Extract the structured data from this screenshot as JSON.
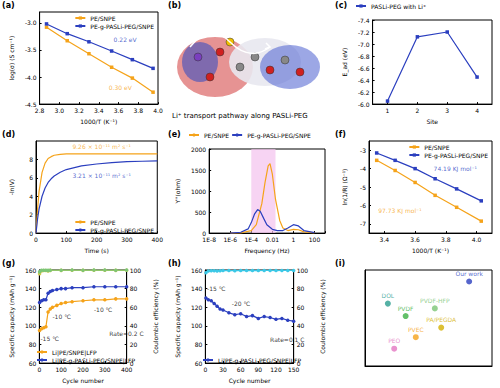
{
  "chart_data": [
    {
      "type": "line",
      "title": "(a)",
      "x_label": "1000/T (K⁻¹)",
      "y_label": "log(σ) (S cm⁻¹)",
      "xlim": [
        2.8,
        4.0
      ],
      "xticks": [
        2.8,
        {
          "value": 3.0,
          "label": "3.0"
        },
        3.2,
        3.4,
        3.6,
        3.8,
        {
          "value": 4.0,
          "label": "4.0"
        }
      ],
      "ylim": [
        -4.5,
        -2.8
      ],
      "yticks": [
        {
          "value": -3.0,
          "label": "-3.0"
        },
        -3.5,
        {
          "value": -4.0,
          "label": "-4.0"
        },
        -4.5
      ],
      "legend": "top-right",
      "marker": "square",
      "line_style": "solid",
      "series": [
        {
          "name": "PE/SNPE",
          "color": "#f5a31a",
          "x": [
            2.87,
            3.08,
            3.3,
            3.53,
            3.74,
            3.95
          ],
          "values": [
            -3.08,
            -3.33,
            -3.57,
            -3.82,
            -4.02,
            -4.28
          ]
        },
        {
          "name": "PE-g-PASLi-PEG/SNPE",
          "color": "#2b3fbf",
          "x": [
            2.87,
            3.08,
            3.3,
            3.53,
            3.74,
            3.95
          ],
          "values": [
            -3.02,
            -3.2,
            -3.35,
            -3.52,
            -3.68,
            -3.84
          ]
        }
      ],
      "annotations": [
        {
          "text": "0.22 eV",
          "color": "#2b3fbf",
          "x": 3.55,
          "y": -3.3
        },
        {
          "text": "0.30 eV",
          "color": "#f5a31a",
          "x": 3.5,
          "y": -4.2
        }
      ]
    },
    {
      "type": "diagram",
      "title": "(b)",
      "label": "Li⁺ transport pathway along PASLi-PEG"
    },
    {
      "type": "line",
      "title": "(c)",
      "x_label": "Site",
      "y_label": "E_ad (eV)",
      "categories": [
        "1",
        "2",
        "3",
        "4"
      ],
      "ylim": [
        -6.0,
        -7.4
      ],
      "yticks": [
        {
          "value": -6.0,
          "label": "-6.0"
        },
        -6.2,
        -6.4,
        -6.6,
        -6.8,
        {
          "value": -7.0,
          "label": "-7.0"
        },
        -7.2,
        -7.4
      ],
      "legend": "top",
      "marker": "square",
      "line_style": "solid",
      "series": [
        {
          "name": "PASLi-PEG with Li⁺",
          "color": "#2b3fbf",
          "values": [
            -6.05,
            -7.12,
            -7.2,
            -6.45
          ]
        }
      ]
    },
    {
      "type": "line",
      "title": "(d)",
      "x_label": "Time (s)",
      "y_label": "-ln(V)",
      "xlim": [
        0,
        400
      ],
      "xticks": [
        0,
        100,
        200,
        300,
        400
      ],
      "ylim": [
        0,
        10
      ],
      "yticks": [
        0,
        2,
        4,
        6,
        8
      ],
      "legend": "bottom-right",
      "marker": "none",
      "line_style": "solid",
      "series": [
        {
          "name": "PE/SNPE",
          "color": "#f5a31a",
          "x": [
            0,
            5,
            10,
            20,
            30,
            40,
            50,
            60,
            80,
            100,
            150,
            200,
            250,
            300,
            350,
            400
          ],
          "values": [
            0,
            2.5,
            4.5,
            6.6,
            7.6,
            8.1,
            8.3,
            8.45,
            8.55,
            8.6,
            8.6,
            8.6,
            8.6,
            8.6,
            8.6,
            8.6
          ]
        },
        {
          "name": "PE-g-PASLi-PEG/SNPE",
          "color": "#2b3fbf",
          "x": [
            0,
            5,
            10,
            20,
            30,
            40,
            50,
            60,
            80,
            100,
            150,
            200,
            250,
            300,
            350,
            400
          ],
          "values": [
            0,
            1.5,
            2.6,
            4.0,
            4.9,
            5.5,
            5.9,
            6.2,
            6.6,
            6.9,
            7.3,
            7.5,
            7.65,
            7.75,
            7.8,
            7.85
          ]
        }
      ],
      "annotations": [
        {
          "text": "9.26 × 10⁻¹¹ m² s⁻¹",
          "color": "#f5a31a",
          "x": 120,
          "y": 9.4
        },
        {
          "text": "3.21 × 10⁻¹¹ m² s⁻¹",
          "color": "#2b3fbf",
          "x": 120,
          "y": 6.3
        }
      ]
    },
    {
      "type": "line",
      "title": "(e)",
      "x_label": "Frequency (Hz)",
      "y_label": "Y''(ohm)",
      "log": "x",
      "xlim": [
        1e-08,
        1000
      ],
      "xticks": [
        {
          "value": 1e-08,
          "label": "1E-8"
        },
        {
          "value": 1e-06,
          "label": "1E-6"
        },
        {
          "value": 0.0001,
          "label": "1E-4"
        },
        0.01,
        1,
        100
      ],
      "ylim": [
        0,
        2000
      ],
      "yticks": [
        0,
        500,
        1000,
        1500,
        2000
      ],
      "legend": "top",
      "marker": "none",
      "line_style": "solid",
      "shaded_range": {
        "x": [
          0.0001,
          0.02
        ],
        "color": "#f3c2ee"
      },
      "series": [
        {
          "name": "PE/SNPE",
          "color": "#f5a31a",
          "x": [
            1e-06,
            1e-05,
            0.0001,
            0.0003,
            0.001,
            0.002,
            0.004,
            0.006,
            0.01,
            0.02,
            0.05,
            0.1,
            0.3,
            1,
            3,
            10,
            100
          ],
          "values": [
            0,
            5,
            60,
            200,
            700,
            1200,
            1600,
            1650,
            1400,
            800,
            300,
            120,
            60,
            90,
            80,
            30,
            5
          ]
        },
        {
          "name": "PE-g-PASLi-PEG/SNPE",
          "color": "#2b3fbf",
          "x": [
            1e-06,
            1e-05,
            5e-05,
            0.0001,
            0.0002,
            0.0004,
            0.0007,
            0.0015,
            0.003,
            0.01,
            0.03,
            0.1,
            0.3,
            1,
            3,
            10,
            100
          ],
          "values": [
            0,
            20,
            100,
            250,
            450,
            560,
            520,
            350,
            200,
            90,
            60,
            60,
            120,
            200,
            170,
            60,
            10
          ]
        }
      ]
    },
    {
      "type": "line",
      "title": "(f)",
      "x_label": "1000/T (K⁻¹)",
      "y_label": "ln(1/R) (Ω⁻¹)",
      "xlim": [
        3.3,
        4.1
      ],
      "xticks": [
        3.4,
        3.6,
        3.8,
        {
          "value": 4.0,
          "label": "4.0"
        }
      ],
      "ylim": [
        -7.5,
        -2.5
      ],
      "yticks": [
        -3,
        -4,
        -5,
        -6,
        -7
      ],
      "legend": "top-right",
      "marker": "square",
      "line_style": "solid",
      "series": [
        {
          "name": "PE/SNPE",
          "color": "#f5a31a",
          "x": [
            3.35,
            3.47,
            3.6,
            3.73,
            3.87,
            4.03
          ],
          "values": [
            -3.55,
            -4.1,
            -4.75,
            -5.45,
            -6.1,
            -6.85
          ]
        },
        {
          "name": "PE-g-PASLi-PEG/SNPE",
          "color": "#2b3fbf",
          "x": [
            3.35,
            3.47,
            3.6,
            3.73,
            3.87,
            4.03
          ],
          "values": [
            -3.15,
            -3.55,
            -4.0,
            -4.55,
            -5.1,
            -5.75
          ]
        }
      ],
      "annotations": [
        {
          "text": "74.19 KJ mol⁻¹",
          "color": "#2b3fbf",
          "x": 3.72,
          "y": -4.0
        },
        {
          "text": "97.73 KJ mol⁻¹",
          "color": "#f5a31a",
          "x": 3.36,
          "y": -6.3
        }
      ]
    },
    {
      "type": "line",
      "title": "(g)",
      "x_label": "Cycle number",
      "y_label": "Specific capacity (mAh g⁻¹)",
      "y2_label": "Coulombic efficiency (%)",
      "xlim": [
        0,
        400
      ],
      "xticks": [
        0,
        100,
        200,
        300,
        400
      ],
      "ylim": [
        60,
        160
      ],
      "yticks": [
        60,
        80,
        100,
        120,
        140,
        160
      ],
      "y2lim": [
        0,
        100
      ],
      "y2ticks": [
        0,
        20,
        40,
        60,
        80,
        100
      ],
      "legend": "bottom-left",
      "marker": "circle",
      "line_style": "solid",
      "series": [
        {
          "name": "Li|PE/SNPE|LFP",
          "color": "#f5a31a",
          "x": [
            1,
            10,
            20,
            30,
            40,
            50,
            60,
            80,
            100,
            120,
            150,
            200,
            250,
            300,
            350,
            400
          ],
          "values": [
            95,
            97,
            98,
            99,
            115,
            118,
            120,
            122,
            124,
            125,
            126,
            127,
            128,
            128,
            129,
            129
          ]
        },
        {
          "name": "Li|PE-g-PASLi-PEG/SNPE|LFP",
          "color": "#2b3fbf",
          "x": [
            1,
            10,
            20,
            30,
            40,
            50,
            60,
            80,
            100,
            120,
            150,
            200,
            250,
            300,
            350,
            400
          ],
          "values": [
            125,
            127,
            128,
            128,
            135,
            137,
            138,
            139,
            140,
            140,
            141,
            141,
            142,
            142,
            142,
            142
          ]
        },
        {
          "axis": "y2",
          "color": "#d4c84a",
          "x": [
            1,
            10,
            20,
            30,
            40,
            50,
            100,
            150,
            200,
            250,
            300,
            350,
            400
          ],
          "values": [
            96,
            99,
            99.5,
            99.5,
            99,
            99.6,
            99.6,
            99.7,
            99.6,
            99.7,
            99.7,
            99.6,
            99.7
          ]
        },
        {
          "axis": "y2",
          "color": "#7cc576",
          "x": [
            1,
            10,
            20,
            30,
            40,
            50,
            100,
            150,
            200,
            250,
            300,
            350,
            400
          ],
          "values": [
            98,
            99.7,
            99.8,
            99.8,
            99.6,
            99.8,
            99.8,
            99.9,
            99.8,
            99.9,
            99.9,
            99.8,
            99.9
          ]
        }
      ],
      "annotations": [
        {
          "text": "-15 ℃",
          "color": "#000000",
          "x": 5,
          "y": 86
        },
        {
          "text": "-10 ℃",
          "color": "#000000",
          "x": 60,
          "y": 110
        },
        {
          "text": "-10 ℃",
          "color": "#000000",
          "x": 250,
          "y": 118
        },
        {
          "text": "Rate=0.2 C",
          "color": "#000000",
          "x": 320,
          "y": 92
        }
      ]
    },
    {
      "type": "line",
      "title": "(h)",
      "x_label": "Cycle number",
      "y_label": "Specific capacity (mAh g⁻¹)",
      "y2_label": "Coulombic efficiency (%)",
      "xlim": [
        0,
        150
      ],
      "xticks": [
        0,
        30,
        60,
        90,
        120,
        150
      ],
      "ylim": [
        60,
        160
      ],
      "yticks": [
        60,
        80,
        100,
        120,
        140,
        160
      ],
      "y2lim": [
        0,
        100
      ],
      "y2ticks": [
        0,
        20,
        40,
        60,
        80,
        100
      ],
      "legend": "bottom-left",
      "marker": "circle",
      "line_style": "solid",
      "series": [
        {
          "name": "Li|PE-g-PASLi-PEG/SNPE|LFP",
          "color": "#2b3fbf",
          "x": [
            1,
            5,
            10,
            15,
            20,
            25,
            30,
            40,
            50,
            60,
            70,
            80,
            90,
            100,
            110,
            120,
            130,
            140,
            150
          ],
          "values": [
            130,
            128,
            127,
            124,
            121,
            118,
            117,
            114,
            112,
            113,
            110,
            111,
            108,
            110,
            109,
            107,
            108,
            106,
            105
          ]
        },
        {
          "axis": "y2",
          "color": "#3cc8e6",
          "x": [
            1,
            5,
            10,
            15,
            20,
            25,
            30,
            40,
            50,
            60,
            70,
            80,
            90,
            100,
            110,
            120,
            130,
            140,
            150
          ],
          "values": [
            97,
            99,
            99.2,
            99.3,
            99,
            99.3,
            99.4,
            99.4,
            99.3,
            99.4,
            99.4,
            99.5,
            99.4,
            99.5,
            99.5,
            99.4,
            99.5,
            99.5,
            99.5
          ]
        }
      ],
      "annotations": [
        {
          "text": "-15 ℃",
          "color": "#000000",
          "x": 3,
          "y": 140
        },
        {
          "text": "-20 ℃",
          "color": "#000000",
          "x": 45,
          "y": 124
        },
        {
          "text": "Rate=0.1 C",
          "color": "#000000",
          "x": 110,
          "y": 85
        }
      ]
    },
    {
      "type": "scatter",
      "title": "(i)",
      "tick_labels": false,
      "marker": "circle",
      "xlim": [
        0,
        10
      ],
      "ylim": [
        0,
        10
      ],
      "x": [
        8.2,
        1.8,
        3.2,
        5.5,
        6.0,
        4.0,
        2.3
      ],
      "values": [
        8.8,
        6.5,
        5.2,
        6.0,
        4.0,
        3.0,
        1.8
      ],
      "labels": [
        "Our work",
        "DOL",
        "PVDF",
        "PVDF-HFP",
        "PA/PEGDA",
        "PVEC",
        "PEO"
      ],
      "colors": [
        "#2b3fbf",
        "#2a9d8f",
        "#3cb043",
        "#7cc576",
        "#d4b000",
        "#f5a31a",
        "#e377c2"
      ]
    }
  ]
}
